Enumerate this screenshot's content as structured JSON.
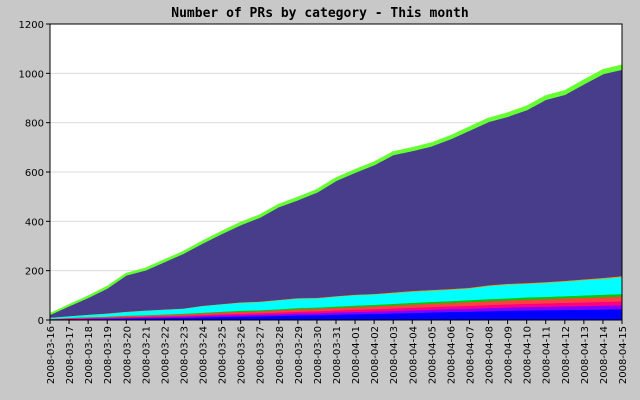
{
  "chart_data": {
    "type": "area",
    "stacked": true,
    "title": "Number of PRs by category - This month",
    "xlabel": "",
    "ylabel": "",
    "ylim": [
      0,
      1200
    ],
    "yticks": [
      0,
      200,
      400,
      600,
      800,
      1000,
      1200
    ],
    "grid": true,
    "legend": "none",
    "x": [
      "2008-03-16",
      "2008-03-17",
      "2008-03-18",
      "2008-03-19",
      "2008-03-20",
      "2008-03-21",
      "2008-03-22",
      "2008-03-23",
      "2008-03-24",
      "2008-03-25",
      "2008-03-26",
      "2008-03-27",
      "2008-03-28",
      "2008-03-29",
      "2008-03-30",
      "2008-03-31",
      "2008-04-01",
      "2008-04-02",
      "2008-04-03",
      "2008-04-04",
      "2008-04-05",
      "2008-04-06",
      "2008-04-07",
      "2008-04-08",
      "2008-04-09",
      "2008-04-10",
      "2008-04-11",
      "2008-04-12",
      "2008-04-13",
      "2008-04-14",
      "2008-04-15"
    ],
    "series": [
      {
        "color": "#0000ff",
        "values": [
          2,
          3,
          4,
          5,
          6,
          7,
          8,
          9,
          11,
          13,
          14,
          15,
          17,
          19,
          20,
          22,
          24,
          25,
          27,
          29,
          31,
          33,
          34,
          36,
          38,
          39,
          40,
          41,
          42,
          43,
          44
        ]
      },
      {
        "color": "#8000ff",
        "values": [
          1,
          2,
          2,
          3,
          3,
          4,
          4,
          5,
          5,
          6,
          6,
          7,
          7,
          8,
          8,
          9,
          9,
          10,
          10,
          11,
          11,
          12,
          12,
          13,
          13,
          14,
          14,
          15,
          15,
          16,
          16
        ]
      },
      {
        "color": "#ff0080",
        "values": [
          1,
          1,
          2,
          2,
          3,
          3,
          4,
          4,
          5,
          5,
          6,
          6,
          7,
          7,
          8,
          8,
          9,
          9,
          10,
          10,
          11,
          11,
          12,
          12,
          13,
          13,
          14,
          14,
          15,
          15,
          16
        ]
      },
      {
        "color": "#ff4040",
        "values": [
          1,
          2,
          3,
          3,
          4,
          4,
          5,
          5,
          6,
          7,
          8,
          8,
          9,
          10,
          10,
          11,
          11,
          12,
          13,
          13,
          14,
          14,
          15,
          16,
          16,
          17,
          17,
          18,
          18,
          19,
          20
        ]
      },
      {
        "color": "#00cc00",
        "values": [
          0,
          1,
          1,
          1,
          2,
          2,
          2,
          3,
          3,
          3,
          4,
          4,
          4,
          5,
          5,
          5,
          6,
          6,
          6,
          7,
          7,
          7,
          8,
          8,
          8,
          9,
          9,
          9,
          10,
          10,
          10
        ]
      },
      {
        "color": "#00ffff",
        "values": [
          5,
          7,
          10,
          12,
          15,
          18,
          19,
          20,
          27,
          30,
          32,
          33,
          36,
          38,
          37,
          40,
          42,
          42,
          43,
          45,
          45,
          46,
          47,
          53,
          56,
          55,
          57,
          59,
          62,
          64,
          68
        ]
      },
      {
        "color": "#ff9900",
        "values": [
          0,
          0,
          0,
          1,
          1,
          1,
          1,
          1,
          1,
          1,
          2,
          2,
          2,
          2,
          2,
          2,
          2,
          2,
          3,
          3,
          3,
          3,
          3,
          3,
          3,
          3,
          3,
          3,
          3,
          4,
          4
        ]
      },
      {
        "color": "#483d8b",
        "values": [
          14,
          43,
          71,
          104,
          150,
          165,
          195,
          225,
          255,
          287,
          316,
          343,
          379,
          400,
          430,
          470,
          497,
          525,
          560,
          570,
          585,
          610,
          640,
          665,
          680,
          704,
          742,
          757,
          794,
          829,
          840
        ]
      },
      {
        "color": "#66ff33",
        "values": [
          0,
          1,
          2,
          3,
          3,
          4,
          4,
          4,
          5,
          5,
          6,
          6,
          6,
          7,
          7,
          7,
          8,
          8,
          8,
          9,
          9,
          9,
          10,
          10,
          11,
          11,
          11,
          12,
          12,
          13,
          14
        ]
      }
    ]
  }
}
